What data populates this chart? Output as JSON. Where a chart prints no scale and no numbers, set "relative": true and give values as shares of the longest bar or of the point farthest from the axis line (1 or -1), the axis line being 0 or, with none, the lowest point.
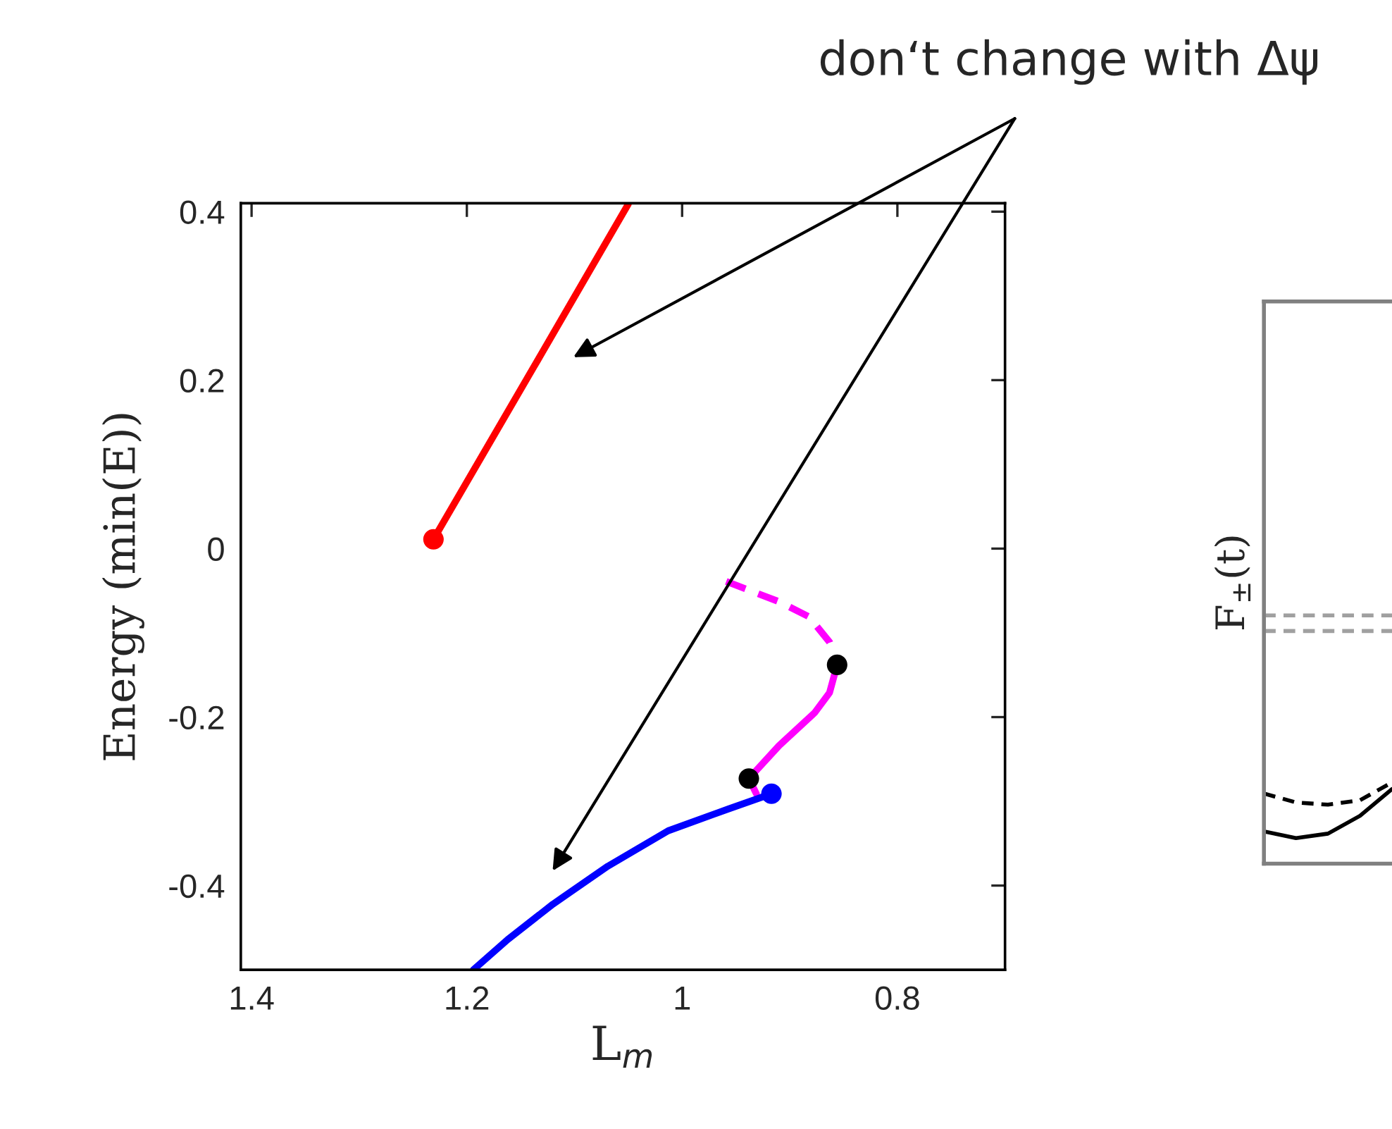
{
  "chart_data": [
    {
      "type": "line",
      "xlabel": "L$_{m}$",
      "ylabel": "Energy (min(E))",
      "xlim": [
        1.41,
        0.7
      ],
      "ylim": [
        -0.5,
        0.41
      ],
      "xticks": [
        1.4,
        1.2,
        1,
        0.8
      ],
      "yticks": [
        -0.4,
        -0.2,
        0,
        0.2,
        0.4
      ],
      "grid": false,
      "legend": false,
      "series": [
        {
          "color": "#ff0000",
          "line_style": "solid",
          "x": [
            1.231,
            1.134,
            1.05
          ],
          "values": [
            0.011,
            0.224,
            0.409
          ]
        },
        {
          "color": "#ff00ff",
          "line_style": "dashed",
          "x": [
            0.959,
            0.91,
            0.882,
            0.863,
            0.856
          ],
          "values": [
            -0.039,
            -0.063,
            -0.081,
            -0.111,
            -0.138
          ]
        },
        {
          "color": "#ff00ff",
          "line_style": "solid",
          "x": [
            0.856,
            0.863,
            0.877,
            0.91,
            0.938,
            0.931
          ],
          "values": [
            -0.138,
            -0.171,
            -0.195,
            -0.234,
            -0.273,
            -0.291
          ]
        },
        {
          "color": "#0000ff",
          "line_style": "solid",
          "x": [
            0.917,
            0.957,
            1.013,
            1.069,
            1.12,
            1.162,
            1.194
          ],
          "values": [
            -0.291,
            -0.309,
            -0.335,
            -0.377,
            -0.422,
            -0.464,
            -0.5
          ]
        },
        {
          "type": "scatter",
          "color": "#ff0000",
          "x": [
            1.231
          ],
          "values": [
            0.011
          ]
        },
        {
          "type": "scatter",
          "color": "#0000ff",
          "x": [
            0.917
          ],
          "values": [
            -0.291
          ]
        },
        {
          "type": "scatter",
          "color": "#000000",
          "x": [
            0.856,
            0.938
          ],
          "values": [
            -0.138,
            -0.273
          ]
        }
      ],
      "annotations": [
        "don‘t change with Δψ"
      ]
    },
    {
      "type": "line",
      "relative": true,
      "ylabel": "F$_{±}$(t)",
      "grid": false,
      "legend": false,
      "categories": [
        null,
        null,
        null,
        null,
        null
      ],
      "series": [
        {
          "color": "#a0a0a0",
          "line_style": "dashed",
          "values": [
            1.0,
            1.0,
            1.0,
            1.0,
            1.0
          ]
        },
        {
          "color": "#a0a0a0",
          "line_style": "dashed",
          "values": [
            0.93,
            0.93,
            0.93,
            0.93,
            0.93
          ]
        },
        {
          "color": "#000000",
          "line_style": "dashed",
          "values": [
            0.2,
            0.16,
            0.15,
            0.17,
            0.25
          ]
        },
        {
          "color": "#000000",
          "line_style": "solid",
          "values": [
            0.03,
            0.0,
            0.02,
            0.1,
            0.22
          ]
        }
      ]
    }
  ]
}
